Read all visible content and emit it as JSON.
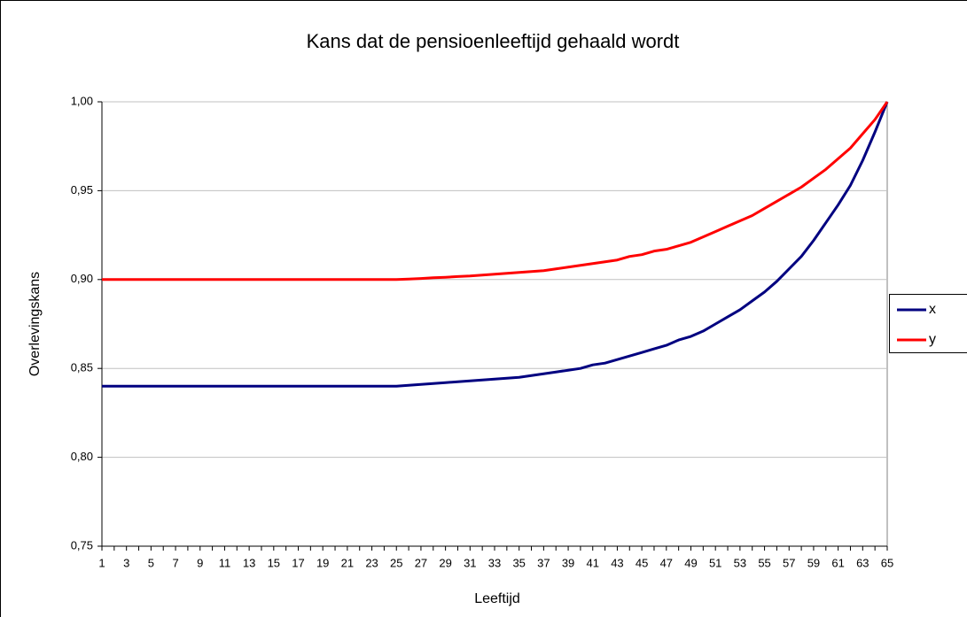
{
  "chart_data": {
    "type": "line",
    "title": "Kans dat de pensioenleeftijd gehaald wordt",
    "x_label": "Leeftijd",
    "y_label": "Overlevingskans",
    "categories": [
      1,
      null,
      3,
      null,
      5,
      null,
      7,
      null,
      9,
      null,
      11,
      null,
      13,
      null,
      15,
      null,
      17,
      null,
      19,
      null,
      21,
      null,
      23,
      null,
      25,
      null,
      27,
      null,
      29,
      null,
      31,
      null,
      33,
      null,
      35,
      null,
      37,
      null,
      39,
      null,
      41,
      null,
      43,
      null,
      45,
      null,
      47,
      null,
      49,
      null,
      51,
      null,
      53,
      null,
      55,
      null,
      57,
      null,
      59,
      null,
      61,
      null,
      63,
      null,
      65
    ],
    "series": [
      {
        "name": "x",
        "color": "#000080",
        "values": [
          0.84,
          0.84,
          0.84,
          0.84,
          0.84,
          0.84,
          0.84,
          0.84,
          0.84,
          0.84,
          0.84,
          0.84,
          0.84,
          0.84,
          0.84,
          0.84,
          0.84,
          0.84,
          0.84,
          0.84,
          0.84,
          0.84,
          0.84,
          0.84,
          0.84,
          0.8405,
          0.841,
          0.8415,
          0.842,
          0.8425,
          0.843,
          0.8435,
          0.844,
          0.8445,
          0.845,
          0.846,
          0.847,
          0.848,
          0.849,
          0.85,
          0.852,
          0.853,
          0.855,
          0.857,
          0.859,
          0.861,
          0.863,
          0.866,
          0.868,
          0.871,
          0.875,
          0.879,
          0.883,
          0.888,
          0.893,
          0.899,
          0.906,
          0.913,
          0.922,
          0.932,
          0.942,
          0.953,
          0.967,
          0.983,
          1.0
        ]
      },
      {
        "name": "y",
        "color": "#ff0000",
        "values": [
          0.9,
          0.9,
          0.9,
          0.9,
          0.9,
          0.9,
          0.9,
          0.9,
          0.9,
          0.9,
          0.9,
          0.9,
          0.9,
          0.9,
          0.9,
          0.9,
          0.9,
          0.9,
          0.9,
          0.9,
          0.9,
          0.9,
          0.9,
          0.9,
          0.9,
          0.9003,
          0.9006,
          0.901,
          0.9013,
          0.9017,
          0.902,
          0.9025,
          0.903,
          0.9035,
          0.904,
          0.9045,
          0.905,
          0.906,
          0.907,
          0.908,
          0.909,
          0.91,
          0.911,
          0.913,
          0.914,
          0.916,
          0.917,
          0.919,
          0.921,
          0.924,
          0.927,
          0.93,
          0.933,
          0.936,
          0.94,
          0.944,
          0.948,
          0.952,
          0.957,
          0.962,
          0.968,
          0.974,
          0.982,
          0.99,
          1.0
        ]
      }
    ],
    "ylim": [
      0.75,
      1.0
    ],
    "yticks": [
      {
        "value": 0.75,
        "label": "0,75"
      },
      {
        "value": 0.8,
        "label": "0,80"
      },
      {
        "value": 0.85,
        "label": "0,85"
      },
      {
        "value": 0.9,
        "label": "0,90"
      },
      {
        "value": 0.95,
        "label": "0,95"
      },
      {
        "value": 1.0,
        "label": "1,00"
      }
    ],
    "grid": true,
    "legend": "right"
  }
}
